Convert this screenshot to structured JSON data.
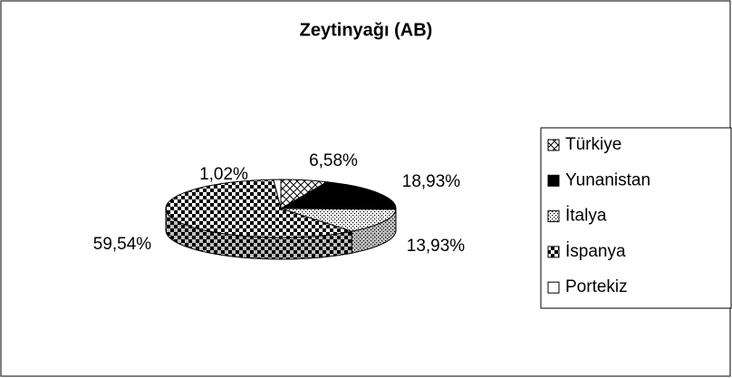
{
  "chart_data": {
    "type": "pie",
    "title": "Zeytinyağı (AB)",
    "categories": [
      "Türkiye",
      "Yunanistan",
      "İtalya",
      "İspanya",
      "Portekiz"
    ],
    "values": [
      6.58,
      18.93,
      13.93,
      59.54,
      1.02
    ],
    "value_labels": [
      "6,58%",
      "18,93%",
      "13,93%",
      "59,54%",
      "1,02%"
    ],
    "colors": [
      "#000000",
      "#000000",
      "#000000",
      "#000000",
      "#000000"
    ],
    "legend": "right"
  }
}
